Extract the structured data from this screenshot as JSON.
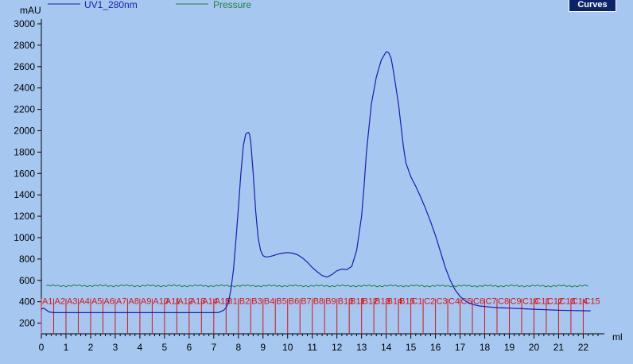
{
  "toolbar": {
    "curves_label": "Curves"
  },
  "chart_data": {
    "type": "line",
    "title": "",
    "xlabel": "ml",
    "ylabel": "mAU",
    "xlim": [
      0,
      22.6
    ],
    "ylim": [
      100,
      3000
    ],
    "yticks": [
      200,
      400,
      600,
      800,
      1000,
      1200,
      1400,
      1600,
      1800,
      2000,
      2200,
      2400,
      2600,
      2800,
      3000
    ],
    "xticks": [
      0,
      1,
      2,
      3,
      4,
      5,
      6,
      7,
      8,
      9,
      10,
      11,
      12,
      13,
      14,
      15,
      16,
      17,
      18,
      19,
      20,
      21,
      22
    ],
    "grid": false,
    "legend_position": "top-left",
    "colors": {
      "background": "#a6c8f0",
      "uv": "#1a1ab0",
      "pressure": "#208040",
      "fractions": "#e01010",
      "axis": "#000000"
    },
    "series": [
      {
        "name": "UV1_280nm",
        "color": "#1a1ab0",
        "x": [
          0,
          0.1,
          0.3,
          0.5,
          1,
          2,
          3,
          4,
          5,
          6,
          7,
          7.2,
          7.4,
          7.5,
          7.6,
          7.7,
          7.8,
          7.9,
          8.0,
          8.1,
          8.2,
          8.3,
          8.4,
          8.45,
          8.5,
          8.6,
          8.7,
          8.8,
          8.9,
          9.0,
          9.1,
          9.2,
          9.4,
          9.6,
          9.8,
          10.0,
          10.2,
          10.4,
          10.6,
          10.8,
          11.0,
          11.2,
          11.4,
          11.6,
          11.8,
          12.0,
          12.2,
          12.4,
          12.6,
          12.8,
          13.0,
          13.1,
          13.2,
          13.4,
          13.6,
          13.8,
          14.0,
          14.1,
          14.2,
          14.3,
          14.4,
          14.5,
          14.6,
          14.7,
          14.8,
          15.0,
          15.2,
          15.4,
          15.6,
          15.8,
          16.0,
          16.2,
          16.4,
          16.6,
          16.8,
          17.0,
          17.2,
          17.4,
          17.6,
          17.8,
          18.0,
          18.5,
          19.0,
          19.5,
          20.0,
          20.5,
          21.0,
          21.5,
          22.0,
          22.3
        ],
        "y": [
          330,
          340,
          305,
          298,
          298,
          298,
          298,
          298,
          298,
          298,
          298,
          300,
          320,
          345,
          400,
          520,
          700,
          980,
          1280,
          1600,
          1860,
          1970,
          1985,
          1970,
          1900,
          1600,
          1250,
          1000,
          880,
          830,
          820,
          820,
          830,
          845,
          855,
          860,
          855,
          840,
          810,
          770,
          720,
          680,
          645,
          630,
          655,
          690,
          705,
          700,
          730,
          880,
          1200,
          1480,
          1800,
          2250,
          2500,
          2660,
          2740,
          2730,
          2680,
          2550,
          2400,
          2250,
          2050,
          1850,
          1700,
          1570,
          1480,
          1380,
          1270,
          1150,
          1020,
          870,
          720,
          600,
          510,
          450,
          410,
          385,
          370,
          360,
          355,
          345,
          340,
          335,
          330,
          325,
          320,
          318,
          316,
          315
        ]
      },
      {
        "name": "Pressure",
        "color": "#208040",
        "x": [
          0.2,
          22.2
        ],
        "y": [
          550,
          548
        ]
      }
    ],
    "fractions": {
      "labels": [
        "A1",
        "A2",
        "A3",
        "A4",
        "A5",
        "A6",
        "A7",
        "A8",
        "A9",
        "A10",
        "A11",
        "A12",
        "A13",
        "A14",
        "A15",
        "B1",
        "B2",
        "B3",
        "B4",
        "B5",
        "B6",
        "B7",
        "B8",
        "B9",
        "B10",
        "B11",
        "B12",
        "B13",
        "B14",
        "B15",
        "C1",
        "C2",
        "C3",
        "C4",
        "C5",
        "C6",
        "C7",
        "C8",
        "C9",
        "C10",
        "C11",
        "C12",
        "C13",
        "C14",
        "C15"
      ],
      "width_ml": 0.5,
      "start_ml": 0.0
    }
  }
}
